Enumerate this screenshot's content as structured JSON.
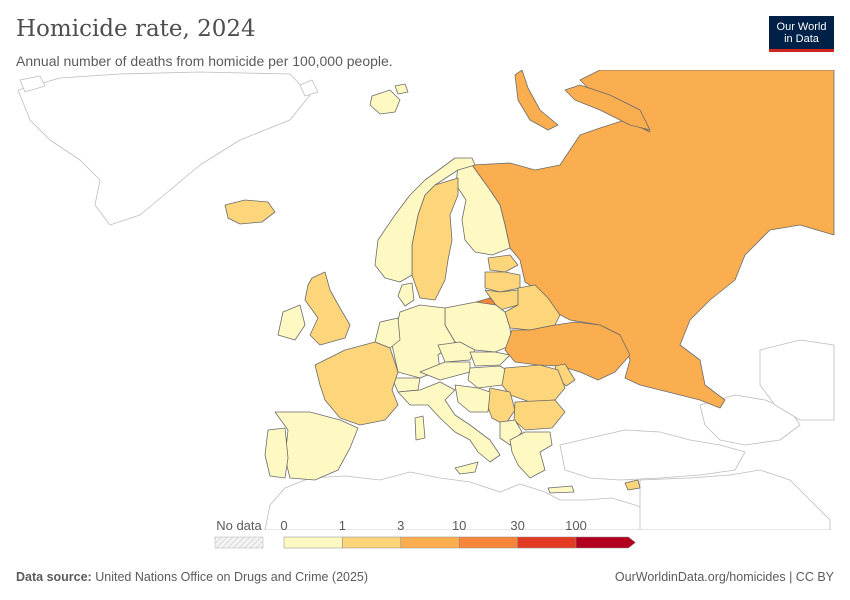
{
  "header": {
    "title": "Homicide rate, 2024",
    "subtitle": "Annual number of deaths from homicide per 100,000 people."
  },
  "logo": {
    "line1": "Our World",
    "line2": "in Data"
  },
  "legend": {
    "no_data_label": "No data",
    "bins": [
      {
        "from": "0",
        "to": "1",
        "color": "#fef9c3"
      },
      {
        "from": "1",
        "to": "3",
        "color": "#fdd57a"
      },
      {
        "from": "3",
        "to": "10",
        "color": "#fbae4f"
      },
      {
        "from": "10",
        "to": "30",
        "color": "#f7863a"
      },
      {
        "from": "30",
        "to": "100",
        "color": "#e33a23"
      },
      {
        "from": "100",
        "to": "",
        "color": "#b3001f"
      }
    ],
    "tick_labels": [
      "0",
      "1",
      "3",
      "10",
      "30",
      "100"
    ]
  },
  "colors": {
    "bin_0_1": "#fef9c3",
    "bin_1_3": "#fdd57a",
    "bin_3_10": "#fbae4f",
    "bin_10_30": "#f7863a",
    "no_data_stroke": "#bdbdbd",
    "border": "#6b6b6b"
  },
  "map_data": {
    "Russia": "3-10",
    "Belarus": "1-3",
    "Ukraine": "3-10",
    "Lithuania": "1-3",
    "Latvia": "1-3",
    "Estonia": "1-3",
    "Finland": "0-1",
    "Sweden": "1-3",
    "Norway": "0-1",
    "Iceland": "1-3",
    "Svalbard": "0-1",
    "United Kingdom": "1-3",
    "Ireland": "0-1",
    "France": "1-3",
    "Spain": "0-1",
    "Portugal": "0-1",
    "Germany": "0-1",
    "Poland": "0-1",
    "Italy": "0-1",
    "Romania": "1-3",
    "Bulgaria": "1-3",
    "Hungary": "0-1",
    "Moldova": "1-3",
    "Kaliningrad": "3-10",
    "Greece": "0-1",
    "Cyprus": "1-3"
  },
  "footer": {
    "source_label": "Data source:",
    "source_text": "United Nations Office on Drugs and Crime (2025)",
    "link_text": "OurWorldinData.org/homicides",
    "license": "| CC BY"
  }
}
